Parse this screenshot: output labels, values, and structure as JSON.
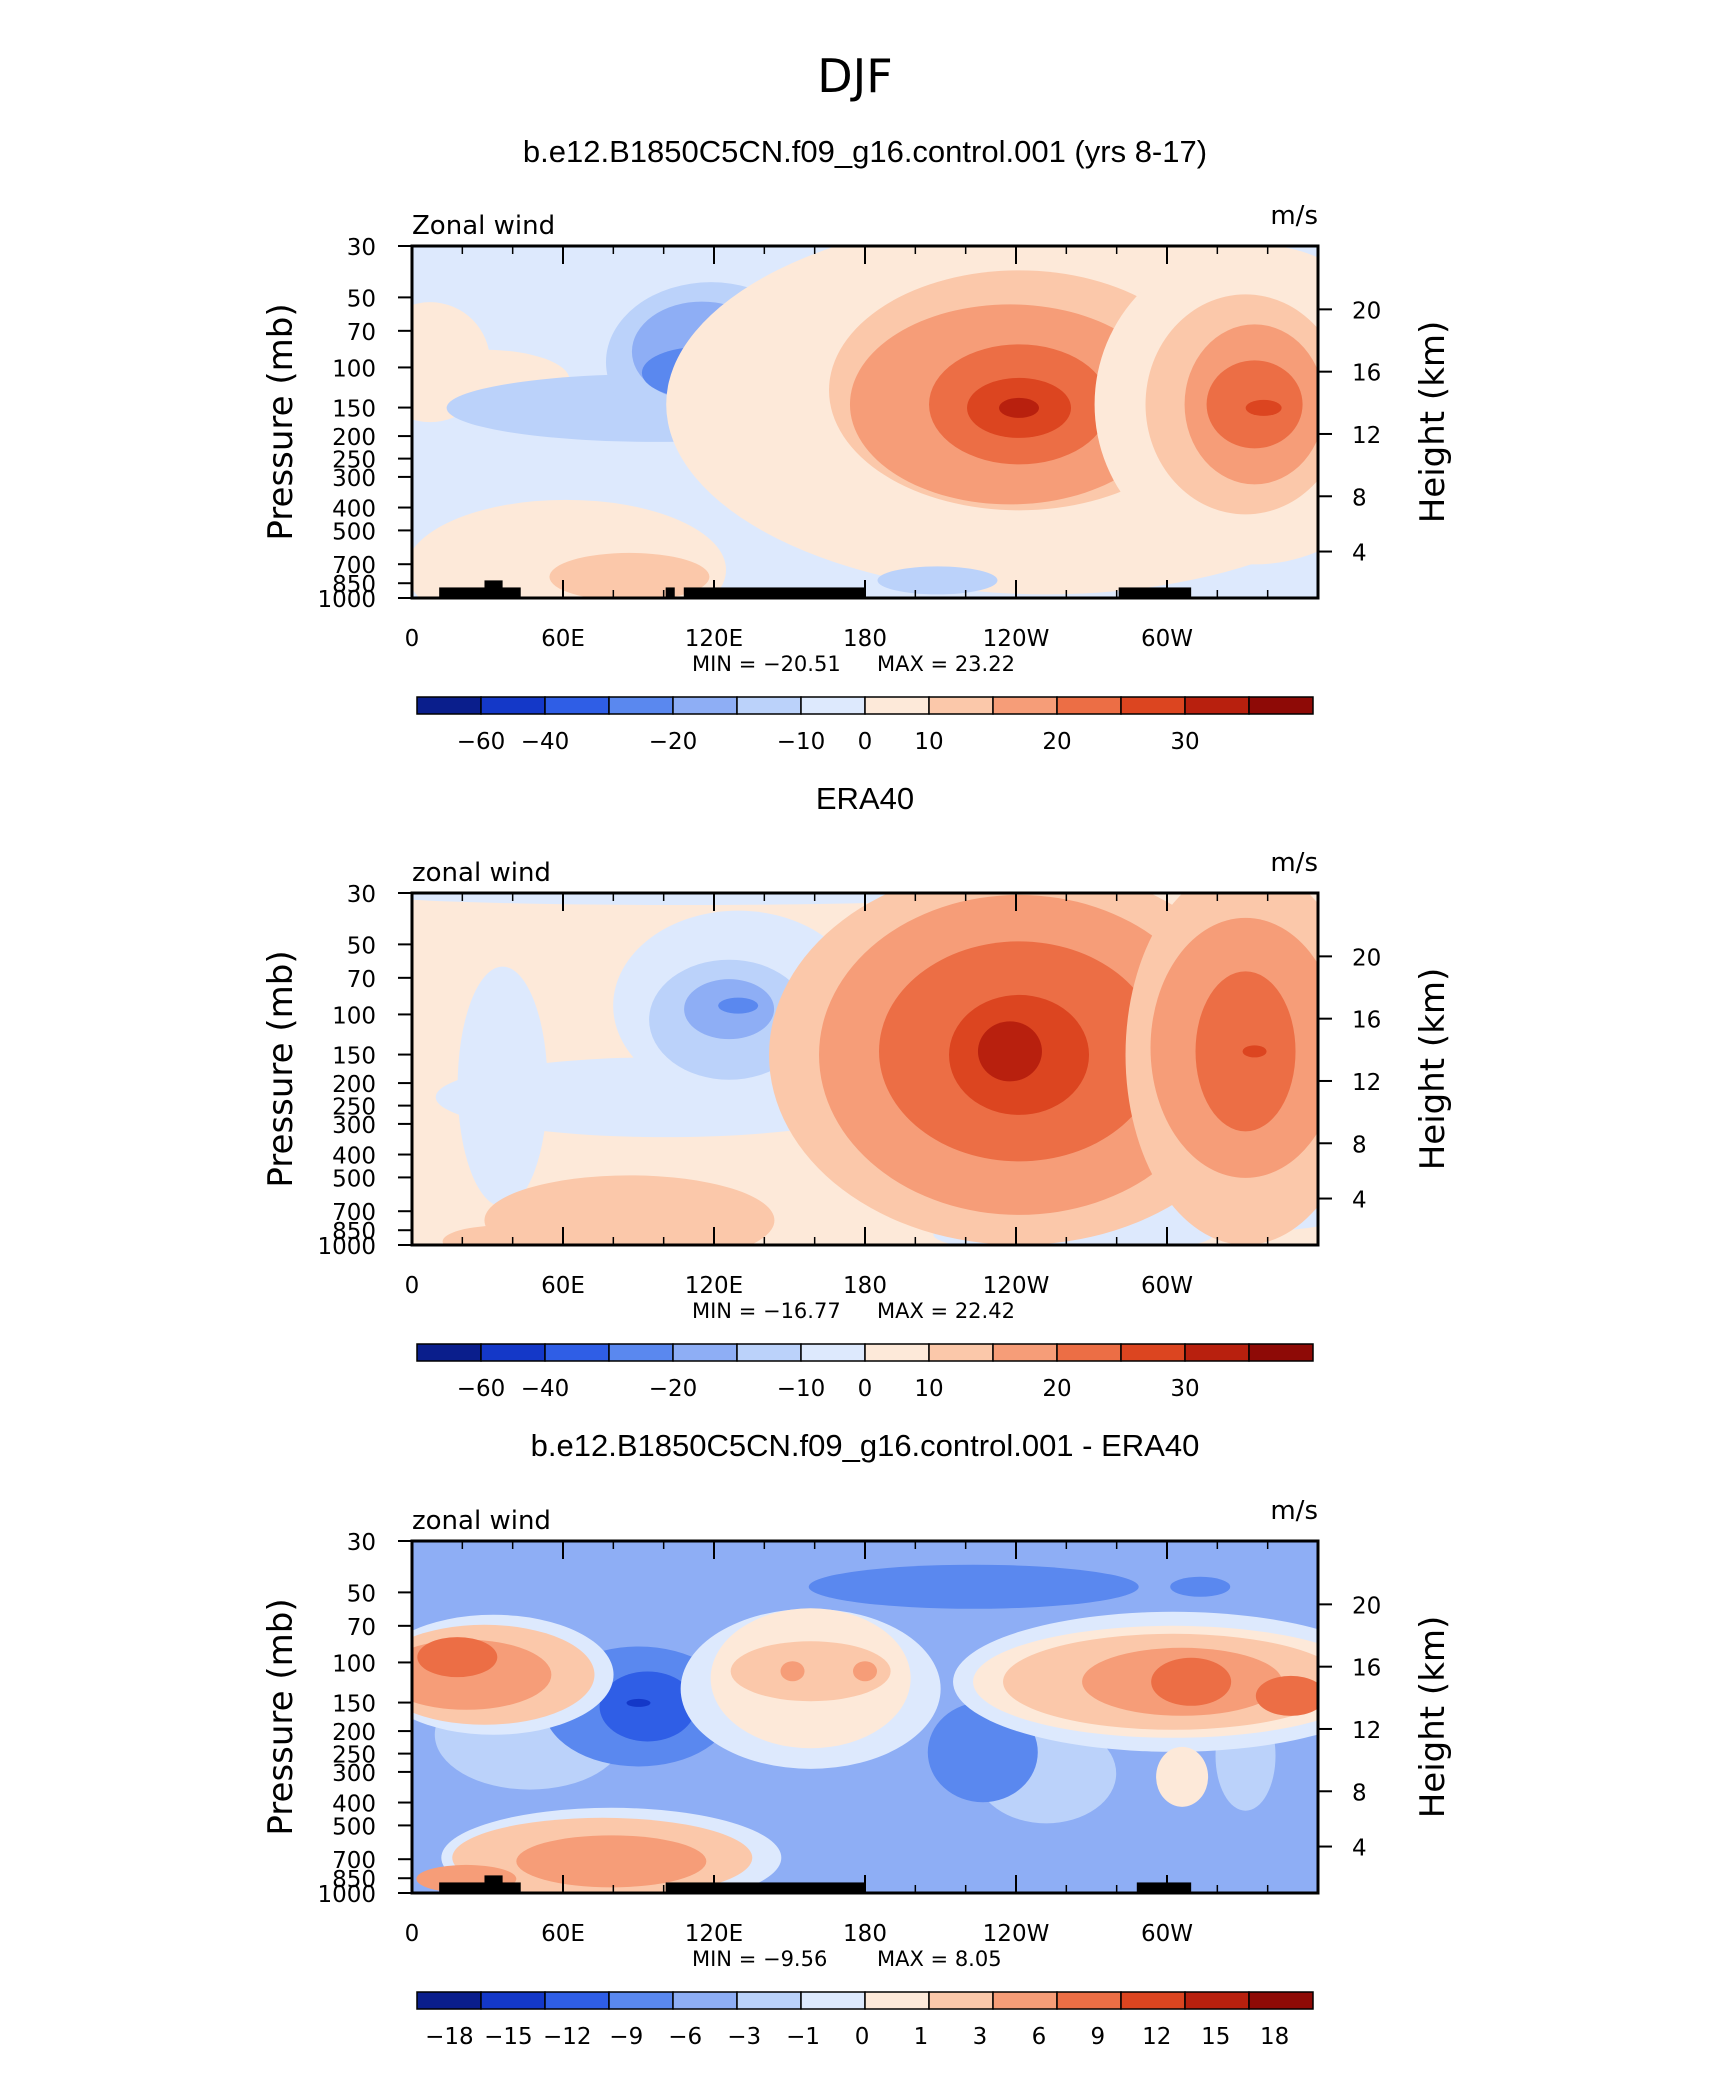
{
  "page_title": "DJF",
  "chart_data": [
    {
      "type": "heatmap",
      "title": "b.e12.B1850C5CN.f09_g16.control.001 (yrs 8-17)",
      "left_label": "Zonal wind",
      "units": "m/s",
      "ylabel": "Pressure (mb)",
      "y2label": "Height (km)",
      "x_ticks": [
        "0",
        "60E",
        "120E",
        "180",
        "120W",
        "60W"
      ],
      "y_ticks": [
        "30",
        "50",
        "70",
        "100",
        "150",
        "200",
        "250",
        "300",
        "400",
        "500",
        "700",
        "850",
        "1000"
      ],
      "y2_ticks": [
        "20",
        "16",
        "12",
        "8",
        "4"
      ],
      "min_label": "MIN =  −20.51",
      "max_label": "MAX =   23.22",
      "min": -20.51,
      "max": 23.22,
      "colorbar_labels": [
        "−60",
        "−40",
        "−20",
        "−10",
        "0",
        "10",
        "20",
        "30"
      ],
      "colorbar_colors": [
        "#0a1e8c",
        "#1438c8",
        "#2f5ee6",
        "#5a88ef",
        "#8eaef5",
        "#bbd2fa",
        "#dde9fd",
        "#fde9d9",
        "#fbc8aa",
        "#f69d78",
        "#ec6e45",
        "#dc4520",
        "#b8200e",
        "#8e0a06"
      ]
    },
    {
      "type": "heatmap",
      "title": "ERA40",
      "left_label": "zonal wind",
      "units": "m/s",
      "ylabel": "Pressure (mb)",
      "y2label": "Height (km)",
      "x_ticks": [
        "0",
        "60E",
        "120E",
        "180",
        "120W",
        "60W"
      ],
      "y_ticks": [
        "30",
        "50",
        "70",
        "100",
        "150",
        "200",
        "250",
        "300",
        "400",
        "500",
        "700",
        "850",
        "1000"
      ],
      "y2_ticks": [
        "20",
        "16",
        "12",
        "8",
        "4"
      ],
      "min_label": "MIN =  −16.77",
      "max_label": "MAX =   22.42",
      "min": -16.77,
      "max": 22.42,
      "colorbar_labels": [
        "−60",
        "−40",
        "−20",
        "−10",
        "0",
        "10",
        "20",
        "30"
      ],
      "colorbar_colors": [
        "#0a1e8c",
        "#1438c8",
        "#2f5ee6",
        "#5a88ef",
        "#8eaef5",
        "#bbd2fa",
        "#dde9fd",
        "#fde9d9",
        "#fbc8aa",
        "#f69d78",
        "#ec6e45",
        "#dc4520",
        "#b8200e",
        "#8e0a06"
      ]
    },
    {
      "type": "heatmap",
      "title": "b.e12.B1850C5CN.f09_g16.control.001 - ERA40",
      "left_label": "zonal wind",
      "units": "m/s",
      "ylabel": "Pressure (mb)",
      "y2label": "Height (km)",
      "x_ticks": [
        "0",
        "60E",
        "120E",
        "180",
        "120W",
        "60W"
      ],
      "y_ticks": [
        "30",
        "50",
        "70",
        "100",
        "150",
        "200",
        "250",
        "300",
        "400",
        "500",
        "700",
        "850",
        "1000"
      ],
      "y2_ticks": [
        "20",
        "16",
        "12",
        "8",
        "4"
      ],
      "min_label": "MIN =   −9.56",
      "max_label": "MAX =     8.05",
      "min": -9.56,
      "max": 8.05,
      "colorbar_labels": [
        "−18",
        "−15",
        "−12",
        "−9",
        "−6",
        "−3",
        "−1",
        "0",
        "1",
        "3",
        "6",
        "9",
        "12",
        "15",
        "18"
      ],
      "colorbar_colors": [
        "#0a1e8c",
        "#1438c8",
        "#2f5ee6",
        "#5a88ef",
        "#8eaef5",
        "#bbd2fa",
        "#dde9fd",
        "#fde9d9",
        "#fbc8aa",
        "#f69d78",
        "#ec6e45",
        "#dc4520",
        "#b8200e",
        "#8e0a06"
      ]
    }
  ]
}
